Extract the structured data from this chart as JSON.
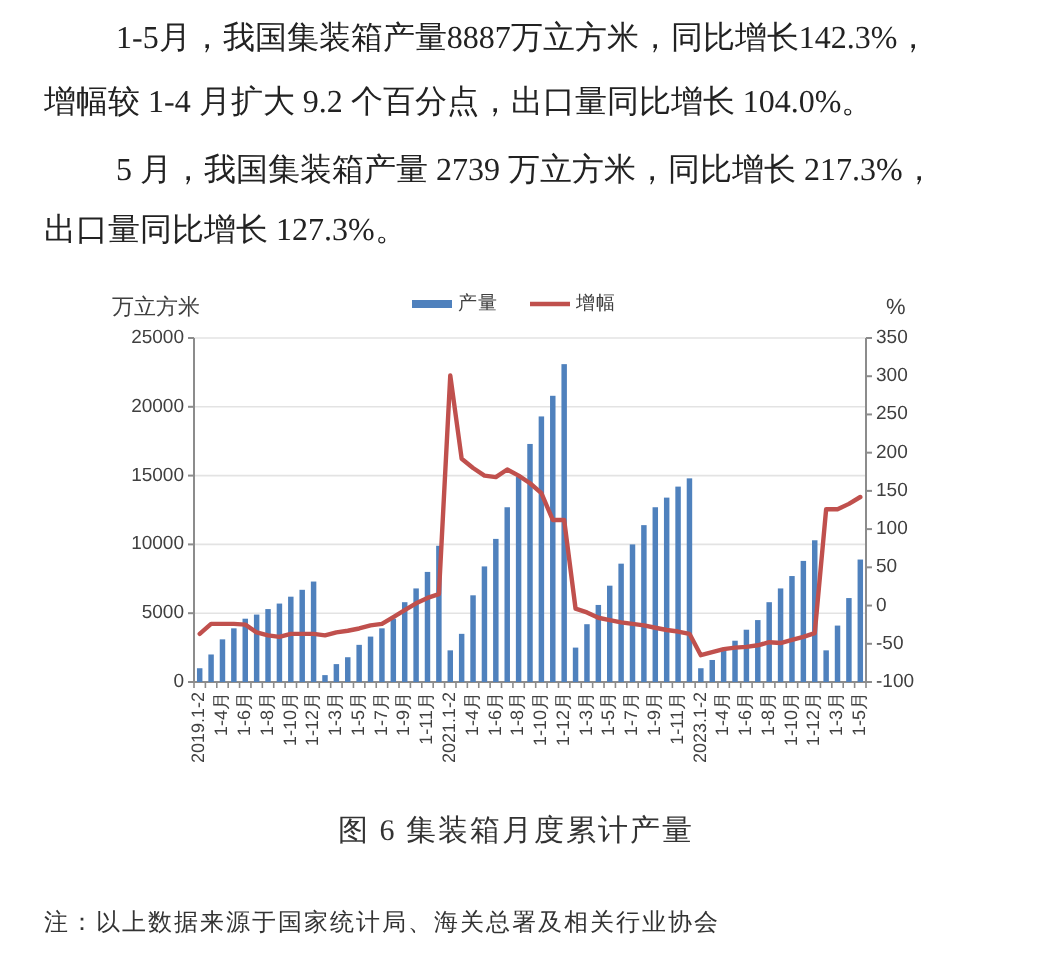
{
  "chart_data": {
    "type": "bar",
    "title": "图 6 集装箱月度累计产量",
    "ylabel": "万立方米",
    "y2label": "%",
    "categories": [
      "2019.1-2",
      null,
      "1-4月",
      null,
      "1-6月",
      null,
      "1-8月",
      null,
      "1-10月",
      null,
      "1-12月",
      null,
      "1-3月",
      null,
      "1-5月",
      null,
      "1-7月",
      null,
      "1-9月",
      null,
      "1-11月",
      null,
      "2021.1-2",
      null,
      "1-4月",
      null,
      "1-6月",
      null,
      "1-8月",
      null,
      "1-10月",
      null,
      "1-12月",
      null,
      "1-3月",
      null,
      "1-5月",
      null,
      "1-7月",
      null,
      "1-9月",
      null,
      "1-11月",
      null,
      "2023.1-2",
      null,
      "1-4月",
      null,
      "1-6月",
      null,
      "1-8月",
      null,
      "1-10月",
      null,
      "1-12月",
      null,
      "1-3月",
      null,
      "1-5月"
    ],
    "series": [
      {
        "name": "产量",
        "color": "#4f81bd",
        "values": [
          1000,
          2000,
          3100,
          3900,
          4600,
          4900,
          5300,
          5700,
          6200,
          6700,
          7300,
          500,
          1300,
          1800,
          2700,
          3300,
          3900,
          4600,
          5800,
          6800,
          8000,
          9900,
          2300,
          3500,
          6300,
          8400,
          10400,
          12700,
          14900,
          17300,
          19300,
          20800,
          23100,
          2500,
          4200,
          5600,
          7000,
          8600,
          10000,
          11400,
          12700,
          13400,
          14200,
          14800,
          1000,
          1600,
          2300,
          3000,
          3800,
          4500,
          5800,
          6800,
          7700,
          8800,
          10300,
          2300,
          4100,
          6100,
          8900
        ]
      },
      {
        "name": "增幅",
        "type": "line",
        "axis": "y2",
        "color": "#c0504d",
        "values": [
          -37,
          -24,
          -24,
          -24,
          -25,
          -35,
          -39,
          -41,
          -37,
          -37,
          -37,
          -39,
          -35,
          -33,
          -30,
          -26,
          -24,
          -15,
          -6,
          3,
          10,
          15,
          301,
          192,
          180,
          170,
          168,
          178,
          170,
          160,
          147,
          112,
          112,
          -4,
          -9,
          -16,
          -19,
          -22,
          -24,
          -26,
          -29,
          -32,
          -34,
          -37,
          -65,
          -61,
          -57,
          -55,
          -54,
          -52,
          -48,
          -49,
          -45,
          -41,
          -36,
          126,
          126,
          133,
          142
        ]
      }
    ],
    "ylim": [
      0,
      25000
    ],
    "yticks": [
      0,
      5000,
      10000,
      15000,
      20000,
      25000
    ],
    "y2lim": [
      -100,
      350
    ],
    "y2ticks": [
      -100,
      -50,
      0,
      50,
      100,
      150,
      200,
      250,
      300,
      350
    ],
    "grid": "y",
    "legend": "top",
    "annotations": [
      "1-5月，我国集装箱产量8887万立方米，同比增长142.3%，",
      "增幅较 1-4 月扩大 9.2 个百分点，出口量同比增长 104.0%。",
      "5 月，我国集装箱产量 2739 万立方米，同比增长 217.3%，",
      "出口量同比增长 127.3%。",
      "注：以上数据来源于国家统计局、海关总署及相关行业协会"
    ]
  }
}
